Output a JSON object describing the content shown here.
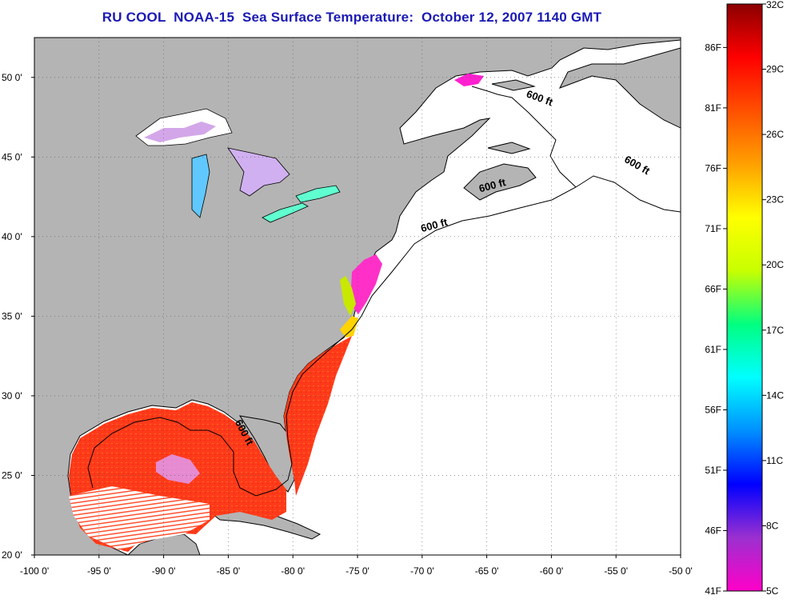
{
  "title": "RU COOL  NOAA-15  Sea Surface Temperature:  October 12, 2007 1140 GMT",
  "map": {
    "lon_range": [
      -100,
      -50
    ],
    "lat_range": [
      20,
      52.5
    ],
    "lon_ticks": [
      {
        "value": -100,
        "label": "-100 0'"
      },
      {
        "value": -95,
        "label": "-95 0'"
      },
      {
        "value": -90,
        "label": "-90 0'"
      },
      {
        "value": -85,
        "label": "-85 0'"
      },
      {
        "value": -80,
        "label": "-80 0'"
      },
      {
        "value": -75,
        "label": "-75 0'"
      },
      {
        "value": -70,
        "label": "-70 0'"
      },
      {
        "value": -65,
        "label": "-65 0'"
      },
      {
        "value": -60,
        "label": "-60 0'"
      },
      {
        "value": -55,
        "label": "-55 0'"
      },
      {
        "value": -50,
        "label": "-50 0'"
      }
    ],
    "lat_ticks": [
      {
        "value": 20,
        "label": "20 0'"
      },
      {
        "value": 25,
        "label": "25 0'"
      },
      {
        "value": 30,
        "label": "30 0'"
      },
      {
        "value": 35,
        "label": "35 0'"
      },
      {
        "value": 40,
        "label": "40 0'"
      },
      {
        "value": 45,
        "label": "45 0'"
      },
      {
        "value": 50,
        "label": "50 0'"
      }
    ],
    "grid": true,
    "contour_labels": [
      {
        "text": "600 ft",
        "lon": -61.0,
        "lat": 48.5,
        "angle": 20
      },
      {
        "text": "600 ft",
        "lon": -53.5,
        "lat": 44.3,
        "angle": 30
      },
      {
        "text": "600 ft",
        "lon": -64.5,
        "lat": 43.0,
        "angle": -15
      },
      {
        "text": "600 ft",
        "lon": -69.0,
        "lat": 40.5,
        "angle": -15
      },
      {
        "text": "600 ft",
        "lon": -84.0,
        "lat": 27.6,
        "angle": 62
      }
    ],
    "colors": {
      "land": "#b4b4b4",
      "no_data": "#ffffff",
      "grid": "#555555",
      "coast": "#000000"
    }
  },
  "colorbar": {
    "fahrenheit_labels": [
      "86F",
      "81F",
      "76F",
      "71F",
      "66F",
      "61F",
      "56F",
      "51F",
      "46F",
      "41F"
    ],
    "celsius_labels": [
      "32C",
      "29C",
      "26C",
      "23C",
      "20C",
      "17C",
      "14C",
      "11C",
      "8C",
      "5C"
    ],
    "range_c": [
      5,
      32
    ],
    "stops": [
      "#ff00c8",
      "#9b30d0",
      "#0000ff",
      "#0090ff",
      "#00ffff",
      "#00ff80",
      "#c8ff00",
      "#ffff00",
      "#ffa000",
      "#ff5000",
      "#ff0000",
      "#8b0000"
    ]
  }
}
